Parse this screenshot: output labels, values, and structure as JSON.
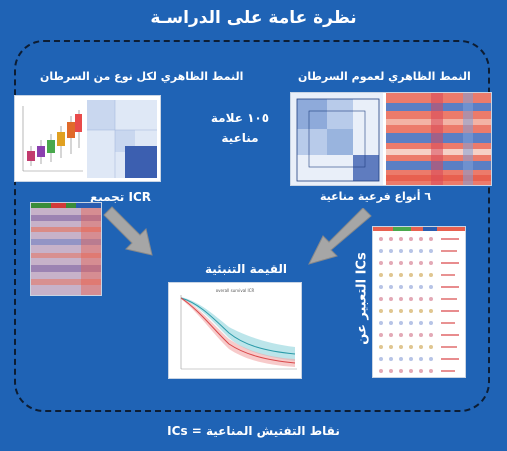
{
  "title": "نظرة عامة على الدراسـة",
  "headings": {
    "per_cancer_type": "النمط الظاهري لكل نوع من السرطان",
    "pan_cancer": "النمط الظاهري لعموم السرطان",
    "immune_signatures": "١٠٥ علامة مناعية",
    "icr_clustering": "تجميع ICR",
    "immune_subtypes": "٦ أنواع فرعية مناعية",
    "prognostic_value": "القيمة التنبئية",
    "ics_expression": "التعبير عن ICs"
  },
  "footer": "ICs = نقاط التفتيش المناعية",
  "colors": {
    "background": "#1f63b5",
    "arrow": "#a6a6a6",
    "heatmap_red": "#e8604f",
    "heatmap_blue": "#5b7fc4"
  },
  "km_plot": {
    "title": "overall survival ICR"
  },
  "icons": [
    "arrow-left-down",
    "arrow-right-down"
  ]
}
